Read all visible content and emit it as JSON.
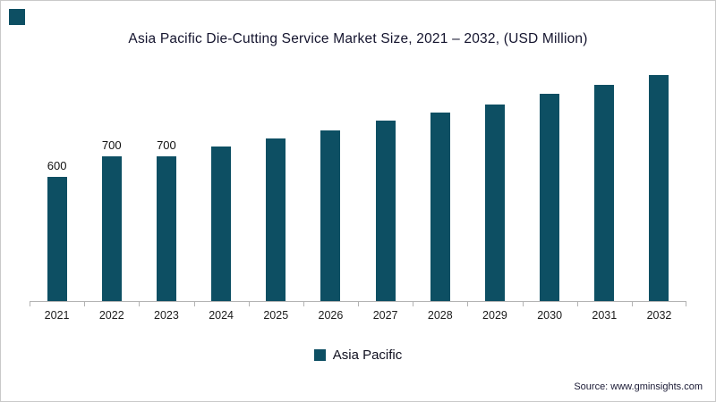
{
  "page": {
    "corner_accent_color": "#0d4f63",
    "border_color": "#c9c9c9"
  },
  "chart_data": {
    "type": "bar",
    "title": "Asia Pacific Die-Cutting Service Market Size, 2021 – 2032, (USD Million)",
    "categories": [
      "2021",
      "2022",
      "2023",
      "2024",
      "2025",
      "2026",
      "2027",
      "2028",
      "2029",
      "2030",
      "2031",
      "2032"
    ],
    "values": [
      600,
      700,
      700,
      745,
      785,
      825,
      870,
      910,
      950,
      1000,
      1045,
      1090
    ],
    "bar_labels": [
      "600",
      "700",
      "700",
      "",
      "",
      "",
      "",
      "",
      "",
      "",
      "",
      ""
    ],
    "xlabel": "",
    "ylabel": "",
    "ylim": [
      0,
      1200
    ],
    "grid": false,
    "bar_color": "#0d4f63",
    "legend_position": "bottom",
    "legend": [
      {
        "label": "Asia Pacific",
        "color": "#0d4f63"
      }
    ]
  },
  "source": {
    "text": "Source: www.gminsights.com"
  }
}
